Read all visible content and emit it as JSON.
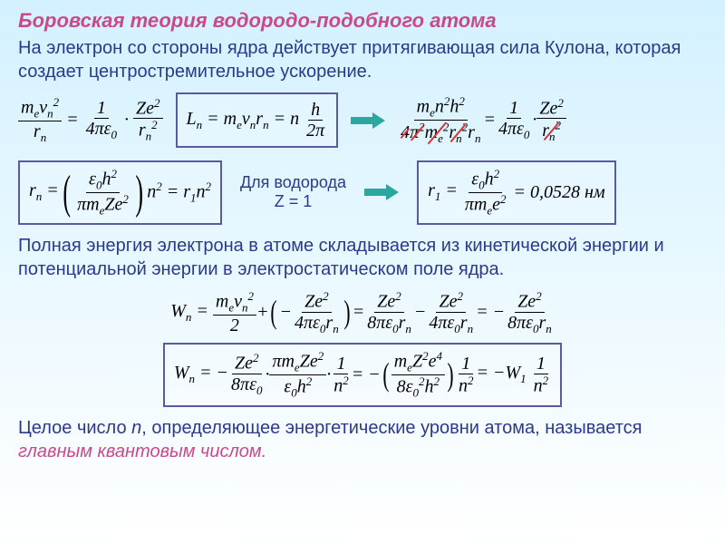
{
  "colors": {
    "title": "#c94a8a",
    "intro": "#2a3a8a",
    "hydrogen_label": "#2a3a8a",
    "highlight": "#c94a8a",
    "box_border": "#5a5aa0",
    "arrow": "#2aa89f",
    "strike": "#d93434",
    "body_text": "#000000"
  },
  "fontsizes": {
    "title": 22,
    "intro": 20,
    "eq": 20,
    "para": 20,
    "hydrogen": 18
  },
  "title": "Боровская теория водородо-подобного атома",
  "intro": "На электрон со стороны ядра действует притягивающая сила Кулона, которая создает центростремительное ускорение.",
  "eq1": {
    "lhs_num": "m<sub>e</sub>v<sub>n</sub><sup>2</sup>",
    "lhs_den": "r<sub>n</sub>",
    "mid_num": "1",
    "mid_den": "4πε<sub>0</sub>",
    "rhs_num": "Ze<sup>2</sup>",
    "rhs_den": "r<sub>n</sub><sup>2</sup>"
  },
  "eq2": {
    "text": "L<sub>n</sub> = m<sub>e</sub>v<sub>n</sub>r<sub>n</sub> = n",
    "frac_num": "h",
    "frac_den": "2π"
  },
  "eq3": {
    "f1_num": "m<sub>e</sub>n<sup>2</sup>h<sup>2</sup>",
    "f1_den_a": "4",
    "f1_den_b": "π<sup>2</sup>",
    "f1_den_c": "m<sub>e</sub><sup>2</sup>",
    "f1_den_d": "r<sub>n</sub><sup>2</sup>",
    "f1_den_e": "r<sub>n</sub>",
    "f2_num": "1",
    "f2_den": "4πε<sub>0</sub>",
    "f3_num": "Ze<sup>2</sup>",
    "f3_den": "r<sub>n</sub><sup>2</sup>"
  },
  "eq_rn": {
    "lhs": "r<sub>n</sub> =",
    "frac_num": "ε<sub>0</sub>h<sup>2</sup>",
    "frac_den": "πm<sub>e</sub>Ze<sup>2</sup>",
    "tail": "n<sup>2</sup> = r<sub>1</sub>n<sup>2</sup>"
  },
  "hydrogen_label": "Для водорода\nZ = 1",
  "eq_r1": {
    "lhs": "r<sub>1</sub> =",
    "frac_num": "ε<sub>0</sub>h<sup>2</sup>",
    "frac_den": "πm<sub>e</sub>e<sup>2</sup>",
    "value": "= 0,0528 нм"
  },
  "para2": "Полная энергия электрона в атоме складывается из кинетической энергии и потенциальной энергии в электростатическом поле ядра.",
  "eq_wn": {
    "lhs": "W<sub>n</sub> =",
    "t1_num": "m<sub>e</sub>v<sub>n</sub><sup>2</sup>",
    "t1_den": "2",
    "t2_num": "Ze<sup>2</sup>",
    "t2_den": "4πε<sub>0</sub>r<sub>n</sub>",
    "t3_num": "Ze<sup>2</sup>",
    "t3_den": "8πε<sub>0</sub>r<sub>n</sub>",
    "t4_num": "Ze<sup>2</sup>",
    "t4_den": "4πε<sub>0</sub>r<sub>n</sub>",
    "t5_num": "Ze<sup>2</sup>",
    "t5_den": "8πε<sub>0</sub>r<sub>n</sub>"
  },
  "eq_wn2": {
    "lhs": "W<sub>n</sub> = −",
    "a_num": "Ze<sup>2</sup>",
    "a_den": "8πε<sub>0</sub>",
    "b_num": "πm<sub>e</sub>Ze<sup>2</sup>",
    "b_den": "ε<sub>0</sub>h<sup>2</sup>",
    "c_num": "1",
    "c_den": "n<sup>2</sup>",
    "d_num": "m<sub>e</sub>Z<sup>2</sup>e<sup>4</sup>",
    "d_den": "8ε<sub>0</sub><sup>2</sup>h<sup>2</sup>",
    "e_num": "1",
    "e_den": "n<sup>2</sup>",
    "tail": "= −W<sub>1</sub>",
    "f_num": "1",
    "f_den": "n<sup>2</sup>"
  },
  "para3_a": "Целое число ",
  "para3_n": "n",
  "para3_b": ", определяющее энергетические уровни атома, называется ",
  "para3_c": "главным квантовым числом."
}
